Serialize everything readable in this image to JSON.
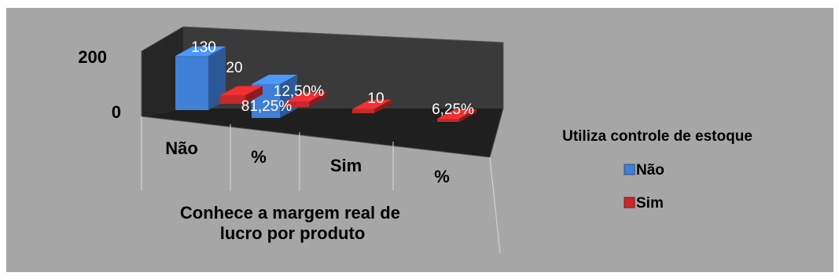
{
  "chart_data": {
    "type": "bar",
    "subtype": "3d-column",
    "categories": [
      "Não",
      "%",
      "Sim",
      "%"
    ],
    "xlabel": "Conhece a margem real de lucro por produto",
    "ylabel": "",
    "yticks": [
      "0",
      "200"
    ],
    "ylim": [
      0,
      200
    ],
    "grid": false,
    "legend_title": "Utiliza controle de estoque",
    "legend_position": "right",
    "series": [
      {
        "name": "Não",
        "color": "#3f7fd6",
        "values": [
          130,
          81.25,
          null,
          null
        ],
        "data_labels": [
          "130",
          "81,25%",
          "",
          ""
        ]
      },
      {
        "name": "Sim",
        "color": "#c8282a",
        "values": [
          20,
          12.5,
          10,
          6.25
        ],
        "data_labels": [
          "20",
          "12,50%",
          "10",
          "6,25%"
        ]
      }
    ]
  }
}
